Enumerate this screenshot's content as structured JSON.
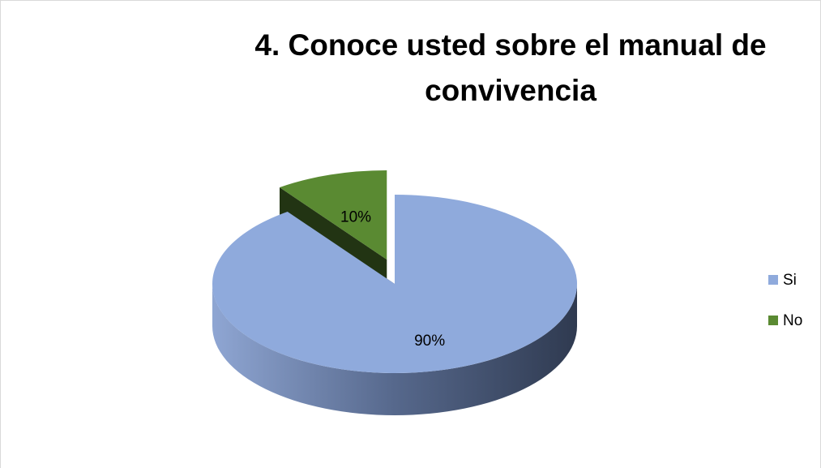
{
  "chart_data": {
    "type": "pie3d",
    "title": "4. Conoce usted sobre el manual de convivencia",
    "categories": [
      "Si",
      "No"
    ],
    "values": [
      90,
      10
    ],
    "value_labels": [
      "90%",
      "10%"
    ],
    "colors": [
      "#8faadc",
      "#5a8a32"
    ],
    "exploded": [
      false,
      true
    ],
    "legend": "right"
  }
}
